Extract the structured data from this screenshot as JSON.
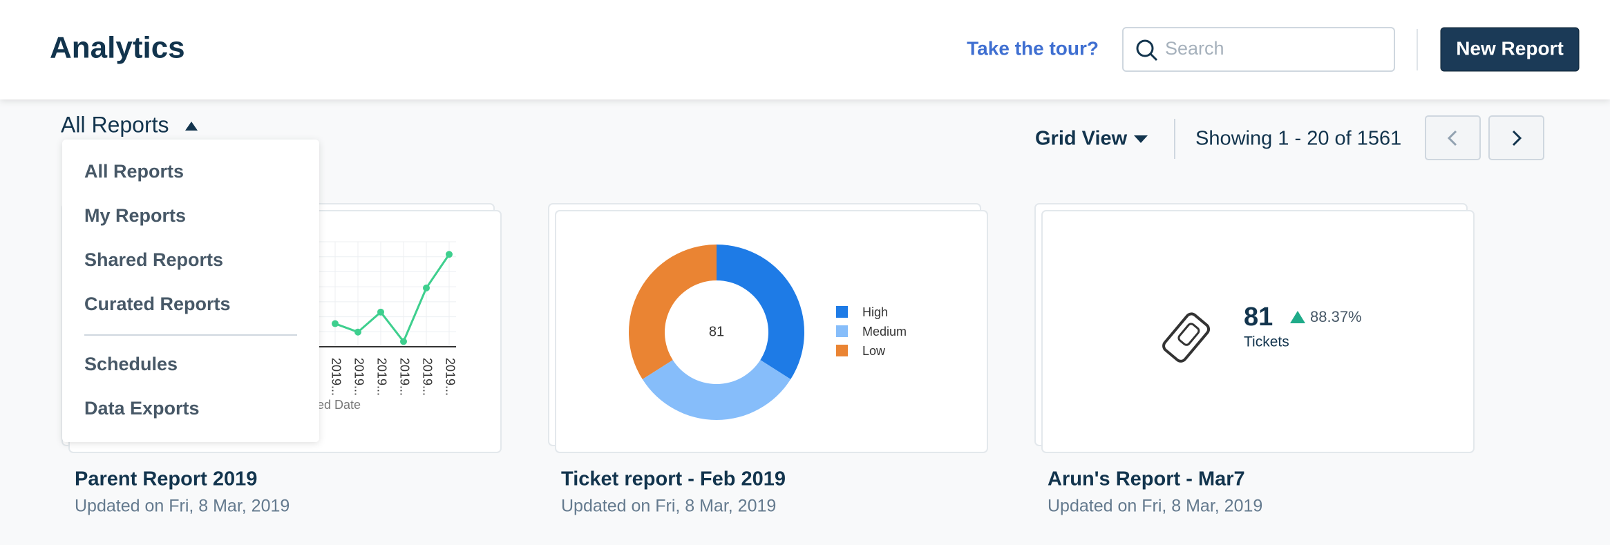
{
  "header": {
    "title": "Analytics",
    "tour_link": "Take the tour?",
    "search_placeholder": "Search",
    "new_report_button": "New Report"
  },
  "toolbar": {
    "filter_label": "All Reports",
    "view_label": "Grid View",
    "showing": "Showing 1 - 20 of 1561"
  },
  "dropdown": {
    "items": [
      "All Reports",
      "My Reports",
      "Shared Reports",
      "Curated Reports"
    ],
    "items2": [
      "Schedules",
      "Data Exports"
    ]
  },
  "cards": [
    {
      "title": "Parent Report 2019",
      "updated": "Updated on Fri, 8 Mar, 2019",
      "chart_data": {
        "type": "line",
        "categories": [
          "2019...",
          "2019...",
          "2019...",
          "2019...",
          "2019...",
          "2019..."
        ],
        "values": [
          22,
          14,
          33,
          5,
          56,
          88
        ],
        "color": "#3ecf8e",
        "ylim": [
          0,
          100
        ],
        "xlabel": "Created Date"
      }
    },
    {
      "title": "Ticket report - Feb 2019",
      "updated": "Updated on Fri, 8 Mar, 2019",
      "chart_data": {
        "type": "donut",
        "center_label": "81",
        "categories": [
          "High",
          "Medium",
          "Low"
        ],
        "values": [
          34,
          32,
          34
        ],
        "colors": [
          "#1e7be6",
          "#86bdfa",
          "#ea8433"
        ]
      }
    },
    {
      "title": "Arun's Report - Mar7",
      "updated": "Updated on Fri, 8 Mar, 2019",
      "metric": {
        "value": "81",
        "change": "88.37%",
        "label": "Tickets"
      }
    }
  ]
}
